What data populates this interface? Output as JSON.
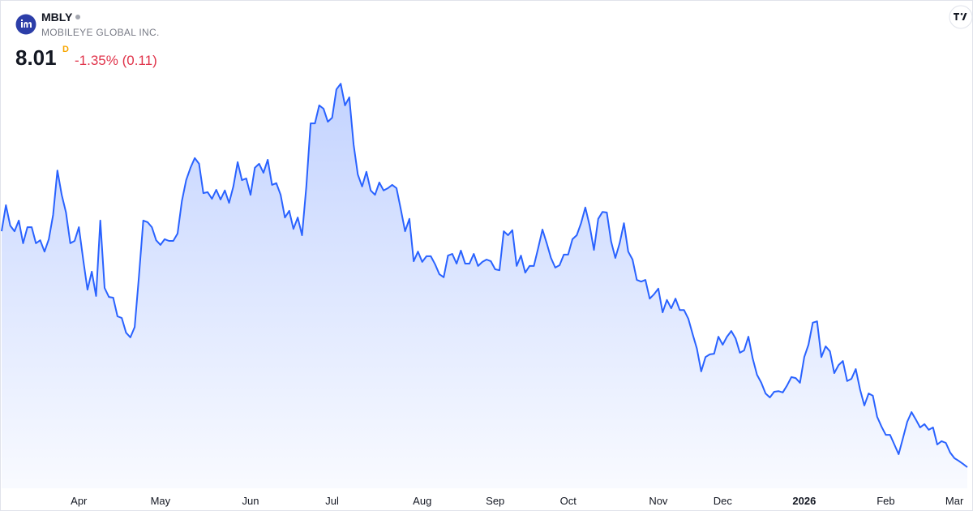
{
  "header": {
    "symbol": "MBLY",
    "name": "MOBILEYE GLOBAL INC.",
    "price": "8.01",
    "interval": "D",
    "change": "-1.35% (0.11)"
  },
  "chart_data": {
    "type": "area",
    "color": "#2962ff",
    "ylim": [
      7.5,
      20.5
    ],
    "categories": [
      null,
      null,
      null,
      null,
      null,
      null,
      null,
      null,
      null,
      null,
      null,
      null,
      null,
      null,
      null,
      null,
      null,
      null,
      "Apr",
      null,
      null,
      null,
      null,
      null,
      null,
      null,
      null,
      null,
      null,
      null,
      null,
      null,
      null,
      null,
      null,
      null,
      null,
      "May",
      null,
      null,
      null,
      null,
      null,
      null,
      null,
      null,
      null,
      null,
      null,
      null,
      null,
      null,
      null,
      null,
      null,
      null,
      null,
      null,
      "Jun",
      null,
      null,
      null,
      null,
      null,
      null,
      null,
      null,
      null,
      null,
      null,
      null,
      null,
      null,
      null,
      null,
      null,
      null,
      "Jul",
      null,
      null,
      null,
      null,
      null,
      null,
      null,
      null,
      null,
      null,
      null,
      null,
      null,
      null,
      null,
      null,
      null,
      null,
      null,
      null,
      "Aug",
      null,
      null,
      null,
      null,
      null,
      null,
      null,
      null,
      null,
      null,
      null,
      null,
      null,
      null,
      null,
      null,
      "Sep",
      null,
      null,
      null,
      null,
      null,
      null,
      null,
      null,
      null,
      null,
      null,
      null,
      null,
      null,
      null,
      null,
      "Oct",
      null,
      null,
      null,
      null,
      null,
      null,
      null,
      null,
      null,
      null,
      null,
      null,
      null,
      null,
      null,
      null,
      null,
      null,
      null,
      null,
      "Nov",
      null,
      null,
      null,
      null,
      null,
      null,
      null,
      null,
      null,
      null,
      null,
      null,
      null,
      null,
      "Dec",
      null,
      null,
      null,
      null,
      null,
      null,
      null,
      null,
      null,
      null,
      null,
      null,
      null,
      null,
      null,
      null,
      null,
      null,
      "2026",
      null,
      null,
      null,
      null,
      null,
      null,
      null,
      null,
      null,
      null,
      null,
      null,
      null,
      null,
      null,
      null,
      null,
      null,
      "Feb",
      null,
      null,
      null,
      null,
      null,
      null,
      null,
      null,
      null,
      null,
      null,
      null,
      null,
      null,
      null,
      "Mar",
      null,
      null,
      null
    ],
    "values": [
      15.08,
      15.86,
      15.25,
      15.08,
      15.4,
      14.72,
      15.2,
      15.2,
      14.72,
      14.81,
      14.47,
      14.84,
      15.57,
      16.9,
      16.17,
      15.64,
      14.72,
      14.79,
      15.2,
      14.23,
      13.33,
      13.87,
      13.14,
      15.4,
      13.38,
      13.11,
      13.09,
      12.53,
      12.48,
      12.04,
      11.9,
      12.21,
      13.74,
      15.4,
      15.35,
      15.2,
      14.81,
      14.67,
      14.84,
      14.79,
      14.79,
      15.01,
      15.98,
      16.61,
      16.98,
      17.27,
      17.1,
      16.22,
      16.25,
      16.05,
      16.32,
      16.03,
      16.3,
      15.93,
      16.42,
      17.15,
      16.61,
      16.66,
      16.17,
      16.98,
      17.1,
      16.83,
      17.22,
      16.47,
      16.52,
      16.17,
      15.49,
      15.69,
      15.15,
      15.49,
      14.96,
      16.42,
      18.31,
      18.31,
      18.85,
      18.75,
      18.36,
      18.48,
      19.33,
      19.5,
      18.85,
      19.09,
      17.68,
      16.78,
      16.42,
      16.86,
      16.3,
      16.17,
      16.54,
      16.3,
      16.37,
      16.47,
      16.37,
      15.74,
      15.08,
      15.45,
      14.18,
      14.47,
      14.16,
      14.33,
      14.33,
      14.09,
      13.79,
      13.7,
      14.35,
      14.4,
      14.11,
      14.5,
      14.11,
      14.11,
      14.4,
      14.04,
      14.16,
      14.23,
      14.18,
      13.94,
      13.91,
      15.08,
      14.96,
      15.11,
      14.04,
      14.35,
      13.84,
      14.04,
      14.04,
      14.57,
      15.13,
      14.72,
      14.28,
      13.99,
      14.06,
      14.38,
      14.38,
      14.84,
      14.96,
      15.32,
      15.79,
      15.25,
      14.52,
      15.45,
      15.66,
      15.64,
      14.77,
      14.28,
      14.72,
      15.32,
      14.47,
      14.23,
      13.62,
      13.57,
      13.62,
      13.06,
      13.19,
      13.36,
      12.65,
      13.02,
      12.77,
      13.06,
      12.72,
      12.72,
      12.46,
      12.0,
      11.56,
      10.88,
      11.31,
      11.39,
      11.41,
      11.92,
      11.68,
      11.92,
      12.09,
      11.87,
      11.44,
      11.51,
      11.92,
      11.27,
      10.78,
      10.54,
      10.22,
      10.1,
      10.27,
      10.29,
      10.25,
      10.46,
      10.71,
      10.68,
      10.54,
      11.31,
      11.68,
      12.34,
      12.38,
      11.31,
      11.63,
      11.48,
      10.83,
      11.07,
      11.19,
      10.59,
      10.66,
      10.95,
      10.34,
      9.86,
      10.22,
      10.15,
      9.52,
      9.23,
      8.98,
      8.98,
      8.69,
      8.4,
      8.88,
      9.37,
      9.66,
      9.44,
      9.2,
      9.3,
      9.13,
      9.2,
      8.69,
      8.79,
      8.74,
      8.45,
      8.28,
      8.2,
      8.11,
      8.01
    ]
  }
}
